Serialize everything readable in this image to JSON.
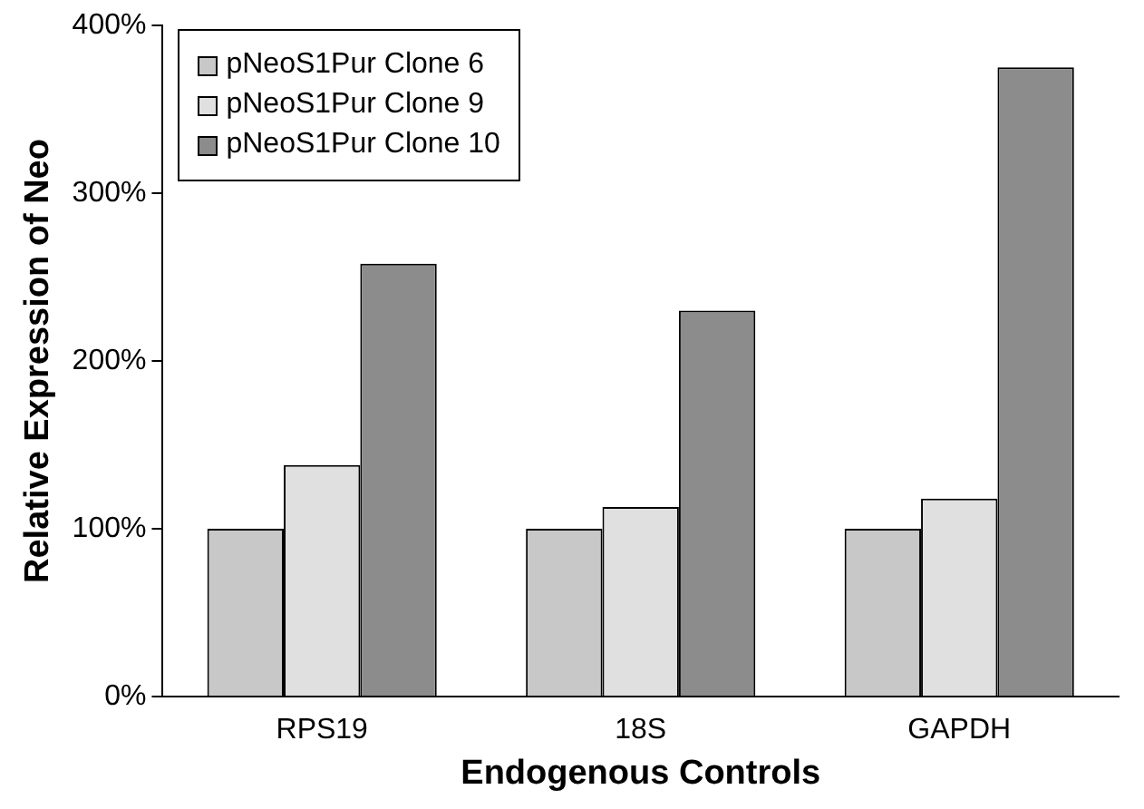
{
  "chart_data": {
    "type": "bar",
    "xlabel": "Endogenous Controls",
    "ylabel": "Relative Expression of Neo",
    "categories": [
      "RPS19",
      "18S",
      "GAPDH"
    ],
    "series": [
      {
        "name": "pNeoS1Pur Clone 6",
        "color": "#c8c8c8",
        "values": [
          100,
          100,
          100
        ]
      },
      {
        "name": "pNeoS1Pur Clone 9",
        "color": "#e0e0e0",
        "values": [
          138,
          113,
          118
        ]
      },
      {
        "name": "pNeoS1Pur Clone 10",
        "color": "#8c8c8c",
        "values": [
          258,
          230,
          375
        ]
      }
    ],
    "ylim": [
      0,
      400
    ],
    "yticks": [
      {
        "value": 0,
        "label": "0%"
      },
      {
        "value": 100,
        "label": "100%"
      },
      {
        "value": 200,
        "label": "200%"
      },
      {
        "value": 300,
        "label": "300%"
      },
      {
        "value": 400,
        "label": "400%"
      }
    ],
    "grid": false,
    "legend": "top left"
  }
}
